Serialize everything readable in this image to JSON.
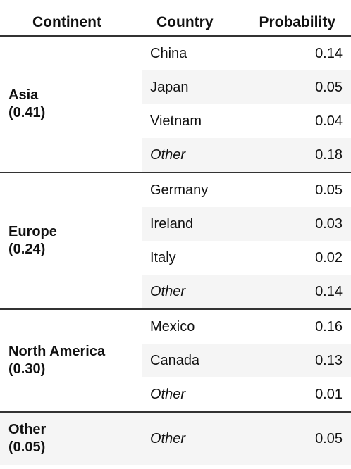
{
  "header": {
    "continent": "Continent",
    "country": "Country",
    "probability": "Probability"
  },
  "groups": [
    {
      "name": "Asia",
      "total": "(0.41)",
      "rows": [
        {
          "country": "China",
          "probability": "0.14"
        },
        {
          "country": "Japan",
          "probability": "0.05"
        },
        {
          "country": "Vietnam",
          "probability": "0.04"
        },
        {
          "country": "Other",
          "probability": "0.18"
        }
      ]
    },
    {
      "name": "Europe",
      "total": "(0.24)",
      "rows": [
        {
          "country": "Germany",
          "probability": "0.05"
        },
        {
          "country": "Ireland",
          "probability": "0.03"
        },
        {
          "country": "Italy",
          "probability": "0.02"
        },
        {
          "country": "Other",
          "probability": "0.14"
        }
      ]
    },
    {
      "name": "North America",
      "total": "(0.30)",
      "rows": [
        {
          "country": "Mexico",
          "probability": "0.16"
        },
        {
          "country": "Canada",
          "probability": "0.13"
        },
        {
          "country": "Other",
          "probability": "0.01"
        }
      ]
    },
    {
      "name": "Other",
      "total": "(0.05)",
      "rows": [
        {
          "country": "Other",
          "probability": "0.05"
        }
      ]
    }
  ]
}
